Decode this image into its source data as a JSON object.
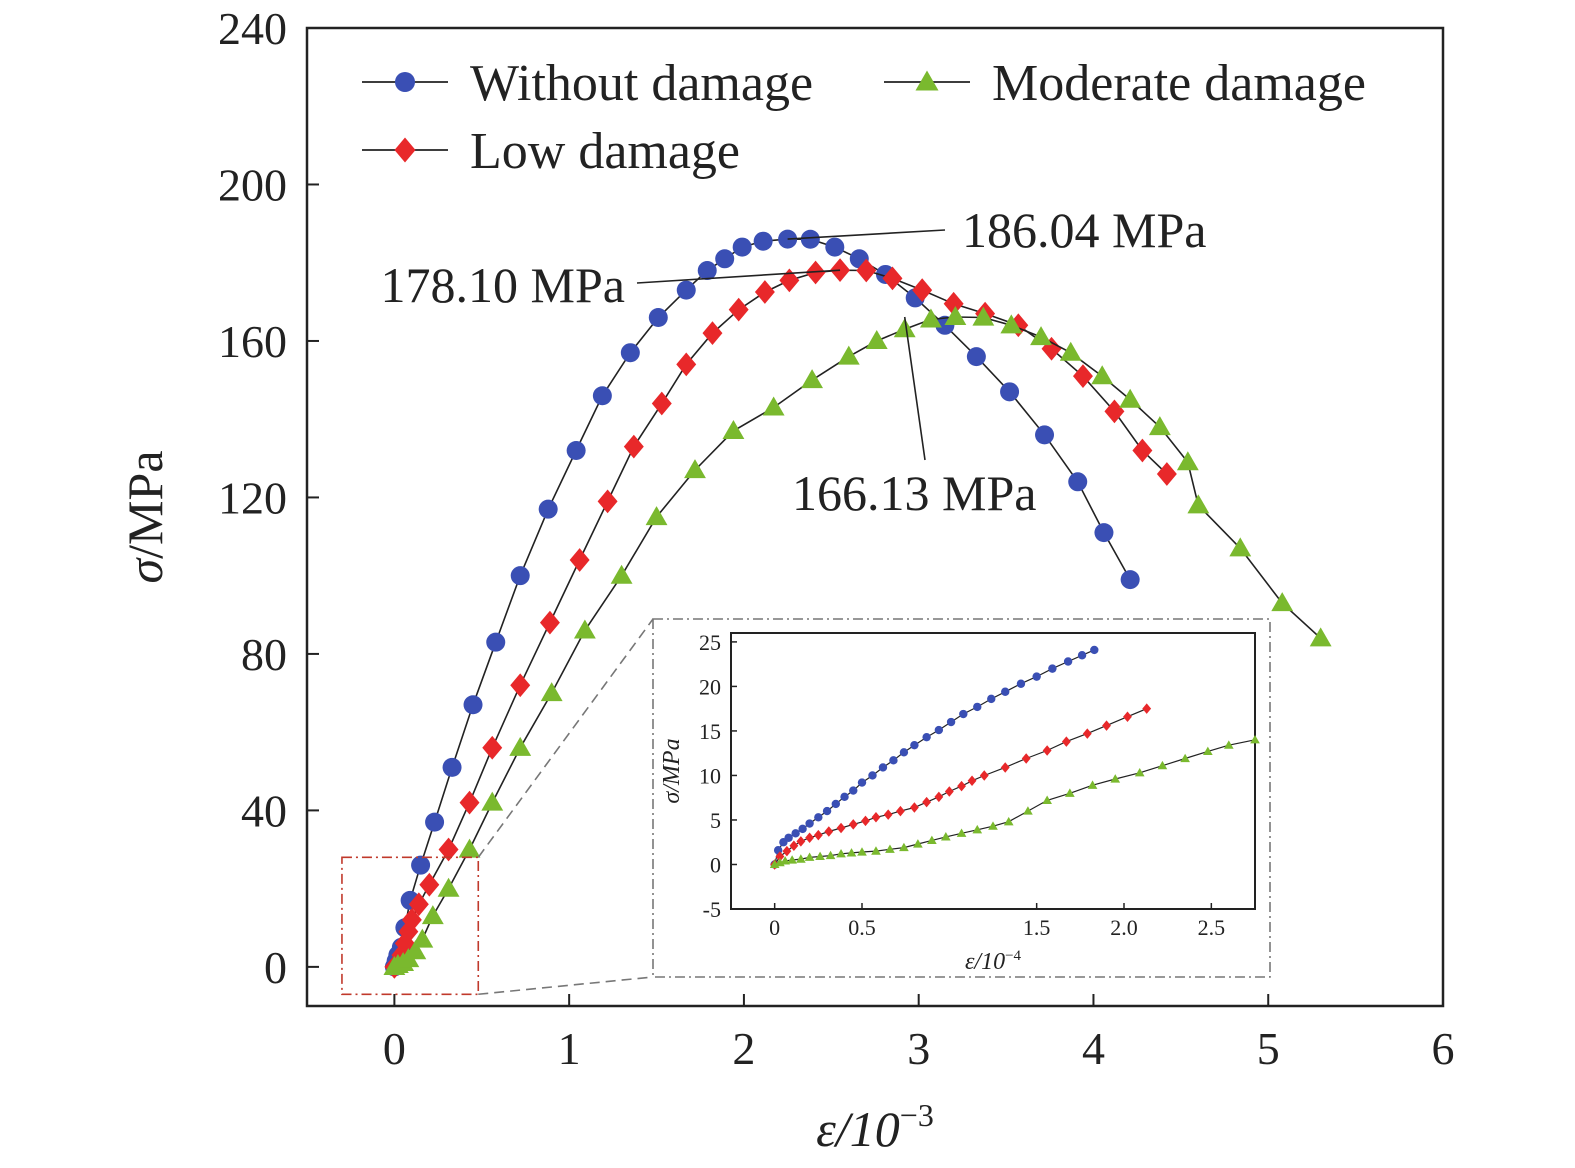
{
  "chart_data": [
    {
      "type": "line",
      "xlabel": "ε/10",
      "xlabel_exponent": "−3",
      "ylabel_symbol": "σ",
      "ylabel_unit": "/MPa",
      "xlim": [
        -0.5,
        6
      ],
      "ylim": [
        -10,
        240
      ],
      "xticks": [
        0,
        1,
        2,
        3,
        4,
        5,
        6
      ],
      "yticks": [
        0,
        40,
        80,
        120,
        160,
        200,
        240
      ],
      "grid": false,
      "legend_placement": "top",
      "series": [
        {
          "name": "Without damage",
          "color": "#3a4fb4",
          "marker": "circle",
          "points": [
            [
              0,
              0
            ],
            [
              0.01,
              1.5
            ],
            [
              0.02,
              3
            ],
            [
              0.04,
              5
            ],
            [
              0.06,
              10
            ],
            [
              0.09,
              17
            ],
            [
              0.15,
              26
            ],
            [
              0.23,
              37
            ],
            [
              0.33,
              51
            ],
            [
              0.45,
              67
            ],
            [
              0.58,
              83
            ],
            [
              0.72,
              100
            ],
            [
              0.88,
              117
            ],
            [
              1.04,
              132
            ],
            [
              1.19,
              146
            ],
            [
              1.35,
              157
            ],
            [
              1.51,
              166
            ],
            [
              1.67,
              173
            ],
            [
              1.79,
              178
            ],
            [
              1.89,
              181
            ],
            [
              1.99,
              184
            ],
            [
              2.11,
              185.5
            ],
            [
              2.25,
              186.04
            ],
            [
              2.38,
              186
            ],
            [
              2.52,
              184
            ],
            [
              2.66,
              181
            ],
            [
              2.81,
              177
            ],
            [
              2.98,
              171
            ],
            [
              3.15,
              164
            ],
            [
              3.33,
              156
            ],
            [
              3.52,
              147
            ],
            [
              3.72,
              136
            ],
            [
              3.91,
              124
            ],
            [
              4.06,
              111
            ],
            [
              4.21,
              99
            ]
          ]
        },
        {
          "name": "Low damage",
          "color": "#e8282a",
          "marker": "diamond",
          "points": [
            [
              0,
              0
            ],
            [
              0.02,
              1
            ],
            [
              0.04,
              3
            ],
            [
              0.06,
              6
            ],
            [
              0.08,
              9
            ],
            [
              0.1,
              12
            ],
            [
              0.14,
              16
            ],
            [
              0.2,
              21
            ],
            [
              0.31,
              30
            ],
            [
              0.43,
              42
            ],
            [
              0.56,
              56
            ],
            [
              0.72,
              72
            ],
            [
              0.89,
              88
            ],
            [
              1.06,
              104
            ],
            [
              1.22,
              119
            ],
            [
              1.37,
              133
            ],
            [
              1.53,
              144
            ],
            [
              1.67,
              154
            ],
            [
              1.82,
              162
            ],
            [
              1.97,
              168
            ],
            [
              2.12,
              172.5
            ],
            [
              2.26,
              175.5
            ],
            [
              2.41,
              177.5
            ],
            [
              2.55,
              178.1
            ],
            [
              2.7,
              178
            ],
            [
              2.85,
              176
            ],
            [
              3.02,
              173
            ],
            [
              3.2,
              169.5
            ],
            [
              3.38,
              167
            ],
            [
              3.57,
              164
            ],
            [
              3.76,
              158
            ],
            [
              3.94,
              151
            ],
            [
              4.12,
              142
            ],
            [
              4.28,
              132
            ],
            [
              4.42,
              126
            ]
          ]
        },
        {
          "name": "Moderate damage",
          "color": "#7ab92e",
          "marker": "triangle",
          "points": [
            [
              0,
              0
            ],
            [
              0.02,
              0.5
            ],
            [
              0.05,
              1
            ],
            [
              0.08,
              2
            ],
            [
              0.12,
              4
            ],
            [
              0.16,
              7
            ],
            [
              0.22,
              13
            ],
            [
              0.31,
              20
            ],
            [
              0.43,
              30
            ],
            [
              0.56,
              42
            ],
            [
              0.72,
              56
            ],
            [
              0.9,
              70
            ],
            [
              1.09,
              86
            ],
            [
              1.3,
              100
            ],
            [
              1.5,
              115
            ],
            [
              1.72,
              127
            ],
            [
              1.94,
              137
            ],
            [
              2.17,
              143
            ],
            [
              2.39,
              150
            ],
            [
              2.6,
              156
            ],
            [
              2.76,
              160
            ],
            [
              2.92,
              163
            ],
            [
              3.07,
              165.5
            ],
            [
              3.21,
              166.13
            ],
            [
              3.37,
              166
            ],
            [
              3.53,
              164
            ],
            [
              3.7,
              161
            ],
            [
              3.87,
              157
            ],
            [
              4.05,
              151
            ],
            [
              4.21,
              145
            ],
            [
              4.38,
              138
            ],
            [
              4.54,
              129
            ],
            [
              4.6,
              118
            ],
            [
              4.84,
              107
            ],
            [
              5.08,
              93
            ],
            [
              5.3,
              84
            ]
          ]
        }
      ],
      "annotations": [
        {
          "text": "186.04 MPa",
          "x": 2.25,
          "y": 186.04
        },
        {
          "text": "178.10 MPa",
          "x": 2.55,
          "y": 178.1
        },
        {
          "text": "166.13 MPa",
          "x": 2.92,
          "y": 166.13
        }
      ],
      "zoom_region": {
        "xlim": [
          -0.3,
          0.48
        ],
        "ylim": [
          -7,
          28
        ]
      }
    },
    {
      "type": "line",
      "inset": true,
      "xlabel": "ε/10",
      "xlabel_exponent": "−4",
      "ylabel": "σ/MPa",
      "xlim": [
        -0.25,
        2.75
      ],
      "ylim": [
        -5,
        26
      ],
      "xticks": [
        0,
        0.5,
        1.5,
        2.0,
        2.5
      ],
      "xtick_labels": [
        "0",
        "0.5",
        "1.5",
        "2.0",
        "2.5"
      ],
      "yticks": [
        -5,
        0,
        5,
        10,
        15,
        20,
        25
      ],
      "grid": false,
      "series": [
        {
          "name": "Without damage",
          "color": "#3a4fb4",
          "marker": "circle",
          "points": [
            [
              0,
              0
            ],
            [
              0.02,
              1.6
            ],
            [
              0.05,
              2.5
            ],
            [
              0.08,
              3
            ],
            [
              0.12,
              3.5
            ],
            [
              0.16,
              4
            ],
            [
              0.2,
              4.6
            ],
            [
              0.25,
              5.3
            ],
            [
              0.3,
              6
            ],
            [
              0.35,
              6.8
            ],
            [
              0.4,
              7.6
            ],
            [
              0.45,
              8.3
            ],
            [
              0.5,
              9.2
            ],
            [
              0.56,
              10
            ],
            [
              0.62,
              10.9
            ],
            [
              0.68,
              11.7
            ],
            [
              0.74,
              12.6
            ],
            [
              0.8,
              13.4
            ],
            [
              0.87,
              14.3
            ],
            [
              0.94,
              15.1
            ],
            [
              1.01,
              16
            ],
            [
              1.08,
              16.9
            ],
            [
              1.16,
              17.7
            ],
            [
              1.24,
              18.6
            ],
            [
              1.32,
              19.4
            ],
            [
              1.41,
              20.3
            ],
            [
              1.5,
              21.1
            ],
            [
              1.59,
              22
            ],
            [
              1.68,
              22.8
            ],
            [
              1.76,
              23.5
            ],
            [
              1.83,
              24.1
            ]
          ]
        },
        {
          "name": "Low damage",
          "color": "#e8282a",
          "marker": "diamond",
          "points": [
            [
              0,
              0
            ],
            [
              0.03,
              0.9
            ],
            [
              0.07,
              1.5
            ],
            [
              0.11,
              2.1
            ],
            [
              0.15,
              2.6
            ],
            [
              0.2,
              3
            ],
            [
              0.25,
              3.3
            ],
            [
              0.31,
              3.7
            ],
            [
              0.38,
              4.1
            ],
            [
              0.45,
              4.5
            ],
            [
              0.52,
              4.9
            ],
            [
              0.58,
              5.3
            ],
            [
              0.65,
              5.6
            ],
            [
              0.72,
              6
            ],
            [
              0.8,
              6.4
            ],
            [
              0.87,
              7
            ],
            [
              0.94,
              7.6
            ],
            [
              1,
              8.2
            ],
            [
              1.07,
              8.8
            ],
            [
              1.13,
              9.4
            ],
            [
              1.2,
              10
            ],
            [
              1.32,
              10.9
            ],
            [
              1.44,
              11.9
            ],
            [
              1.56,
              12.8
            ],
            [
              1.67,
              13.8
            ],
            [
              1.79,
              14.7
            ],
            [
              1.9,
              15.6
            ],
            [
              2.02,
              16.6
            ],
            [
              2.13,
              17.5
            ]
          ]
        },
        {
          "name": "Moderate damage",
          "color": "#7ab92e",
          "marker": "triangle",
          "points": [
            [
              0,
              0
            ],
            [
              0.03,
              0.2
            ],
            [
              0.06,
              0.4
            ],
            [
              0.1,
              0.5
            ],
            [
              0.15,
              0.6
            ],
            [
              0.2,
              0.8
            ],
            [
              0.26,
              0.9
            ],
            [
              0.32,
              1
            ],
            [
              0.38,
              1.2
            ],
            [
              0.44,
              1.3
            ],
            [
              0.5,
              1.4
            ],
            [
              0.58,
              1.5
            ],
            [
              0.66,
              1.7
            ],
            [
              0.74,
              1.9
            ],
            [
              0.82,
              2.3
            ],
            [
              0.9,
              2.7
            ],
            [
              0.98,
              3.1
            ],
            [
              1.07,
              3.5
            ],
            [
              1.16,
              3.9
            ],
            [
              1.25,
              4.3
            ],
            [
              1.34,
              4.8
            ],
            [
              1.45,
              6
            ],
            [
              1.56,
              7.2
            ],
            [
              1.69,
              8
            ],
            [
              1.82,
              8.9
            ],
            [
              1.95,
              9.6
            ],
            [
              2.09,
              10.3
            ],
            [
              2.22,
              11.1
            ],
            [
              2.35,
              11.9
            ],
            [
              2.48,
              12.7
            ],
            [
              2.6,
              13.4
            ],
            [
              2.75,
              14
            ]
          ]
        }
      ]
    }
  ]
}
